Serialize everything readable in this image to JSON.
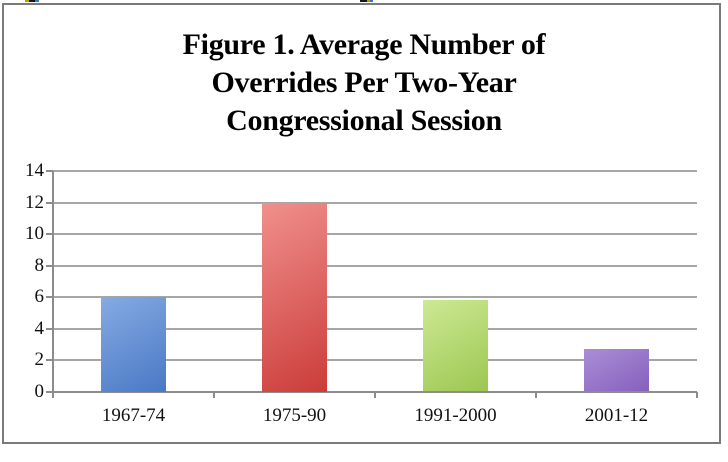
{
  "chart_data": {
    "type": "bar",
    "title": "Figure 1. Average Number of Overrides Per Two-Year Congressional Session",
    "title_lines": [
      "Figure 1. Average Number of",
      "Overrides Per Two-Year",
      "Congressional Session"
    ],
    "categories": [
      "1967-74",
      "1975-90",
      "1991-2000",
      "2001-12"
    ],
    "values": [
      6,
      12,
      5.8,
      2.7
    ],
    "xlabel": "",
    "ylabel": "",
    "ylim": [
      0,
      14
    ],
    "yticks": [
      0,
      2,
      4,
      6,
      8,
      10,
      12,
      14
    ],
    "grid": true,
    "legend": "none",
    "bar_colors": [
      {
        "name": "blue",
        "light": "#85abe3",
        "dark": "#4a78c5"
      },
      {
        "name": "red",
        "light": "#f0908d",
        "dark": "#cb3c39"
      },
      {
        "name": "green",
        "light": "#cde994",
        "dark": "#9cc751"
      },
      {
        "name": "purple",
        "light": "#aa8ed6",
        "dark": "#8660bd"
      }
    ],
    "colors": {
      "gridline": "#a6a6a6",
      "axis": "#8c8c8c",
      "frame_border": "#7a7a7a",
      "text": "#000000"
    }
  }
}
